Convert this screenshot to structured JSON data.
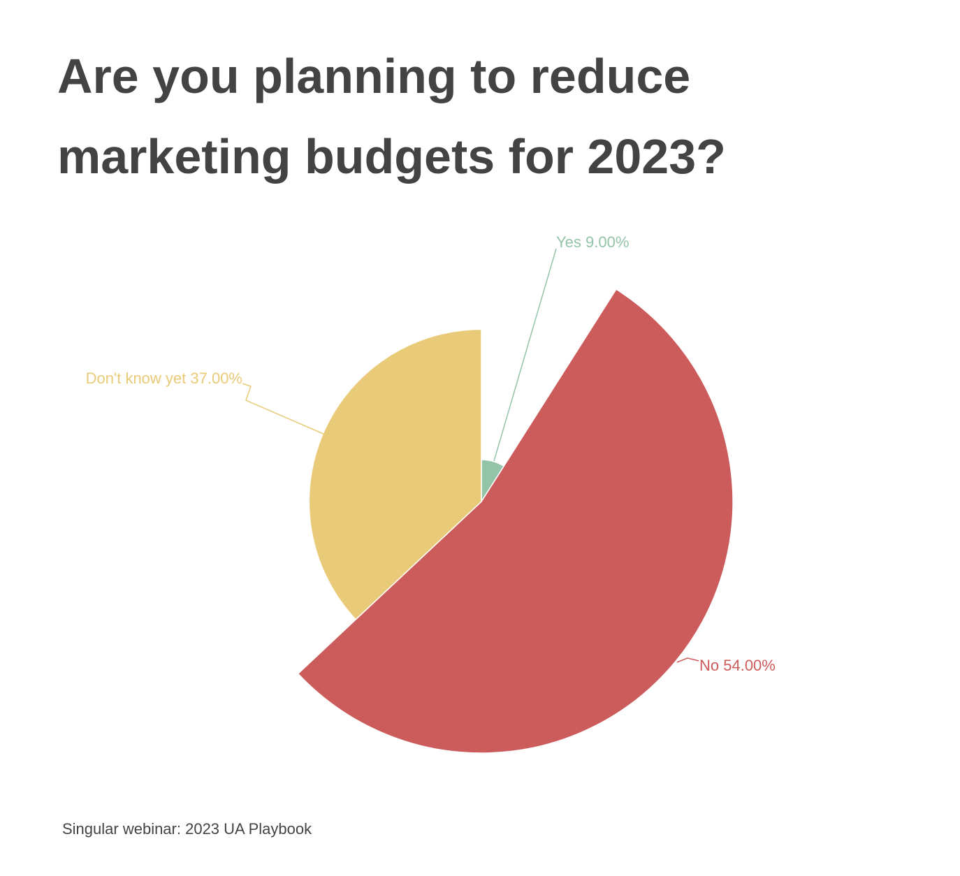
{
  "title_lines": [
    "Are you planning to reduce",
    "marketing budgets for 2023?"
  ],
  "source": "Singular webinar: 2023 UA Playbook",
  "chart_data": {
    "type": "pie",
    "title": "Are you planning to reduce marketing budgets for 2023?",
    "display": "radius proportional to value (rose/variable-radius pie)",
    "slices": [
      {
        "label": "Yes",
        "value": 9.0,
        "display": "Yes 9.00%",
        "color": "#93c4a8"
      },
      {
        "label": "No",
        "value": 54.0,
        "display": "No 54.00%",
        "color": "#cc5b5b"
      },
      {
        "label": "Don't know yet",
        "value": 37.0,
        "display": "Don't know yet 37.00%",
        "color": "#e9ca78"
      }
    ]
  }
}
